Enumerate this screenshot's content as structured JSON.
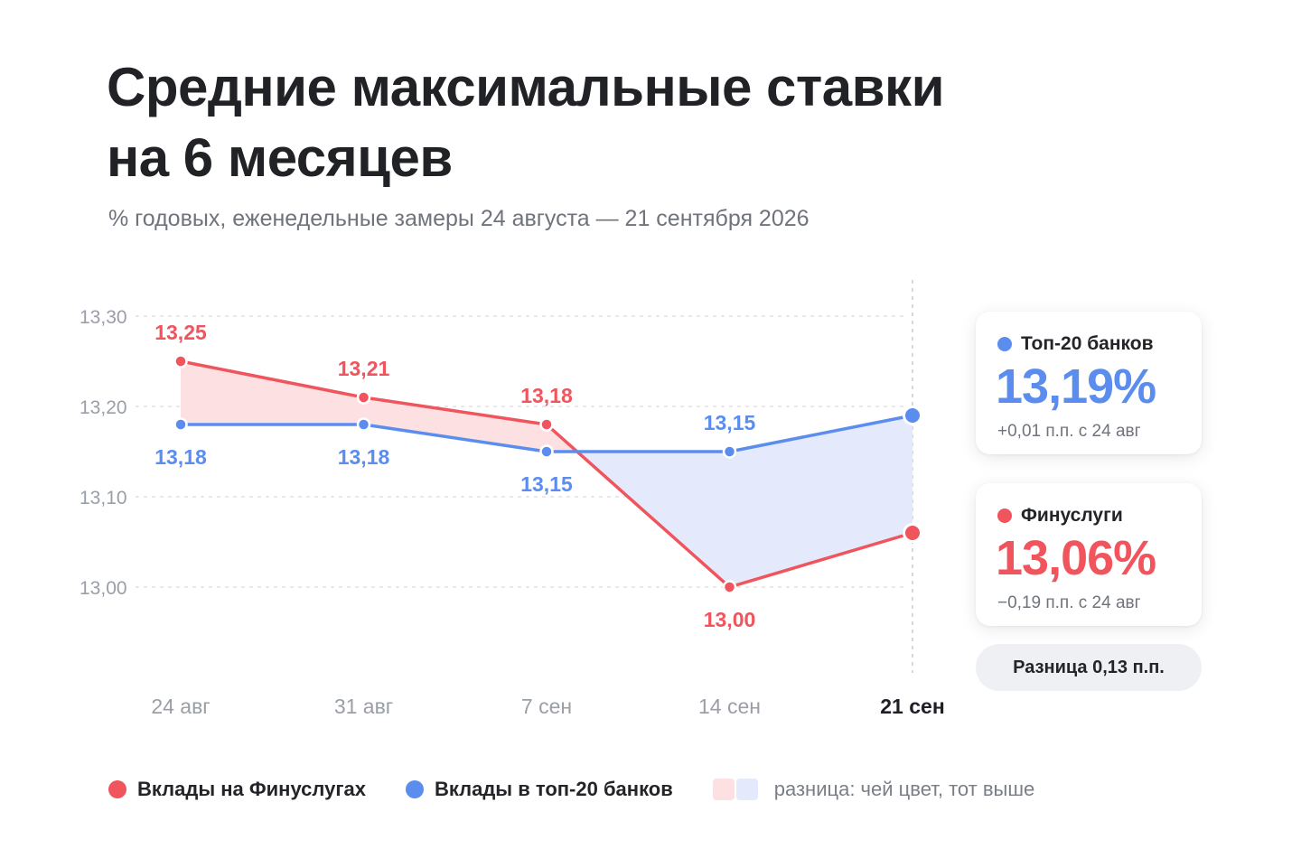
{
  "title_line1": "Средние максимальные ставки",
  "title_line2": "на 6 месяцев",
  "subtitle": "% годовых, еженедельные замеры 24 августа — 21 сентября 2026",
  "colors": {
    "finuslugi": "#f0545c",
    "top20": "#5b8def",
    "fill_red": "#fde1e2",
    "fill_blue": "#e4eafb",
    "grid": "#d9dbe0"
  },
  "chart_data": {
    "type": "line",
    "x": [
      "24 авг",
      "31 авг",
      "7 сен",
      "14 сен",
      "21 сен"
    ],
    "highlighted_x": "21 сен",
    "ylim": [
      12.9,
      13.3
    ],
    "yticks": [
      "13,30",
      "13,20",
      "13,10",
      "13,00"
    ],
    "ytick_values": [
      13.3,
      13.2,
      13.1,
      13.0
    ],
    "grid": true,
    "series": [
      {
        "name": "Вклады на Финуслугах",
        "color": "#f0545c",
        "values": [
          13.25,
          13.21,
          13.18,
          13.0,
          13.06
        ],
        "labels": [
          "13,25",
          "13,21",
          "13,18",
          "13,00",
          ""
        ]
      },
      {
        "name": "Вклады в топ-20 банков",
        "color": "#5b8def",
        "values": [
          13.18,
          13.18,
          13.15,
          13.15,
          13.19
        ],
        "labels": [
          "13,18",
          "13,18",
          "13,15",
          "13,15",
          ""
        ]
      }
    ]
  },
  "cards": [
    {
      "name": "Топ-20 банков",
      "value": "13,19%",
      "delta": "+0,01 п.п. с 24 авг",
      "color": "#5b8def"
    },
    {
      "name": "Финуслуги",
      "value": "13,06%",
      "delta": "−0,19 п.п. с 24 авг",
      "color": "#f0545c"
    }
  ],
  "difference_label": "Разница 0,13 п.п.",
  "legend": {
    "finuslugi": "Вклады на Финуслугах",
    "top20": "Вклады в топ-20 банков",
    "note": "разница: чей цвет, тот выше"
  }
}
